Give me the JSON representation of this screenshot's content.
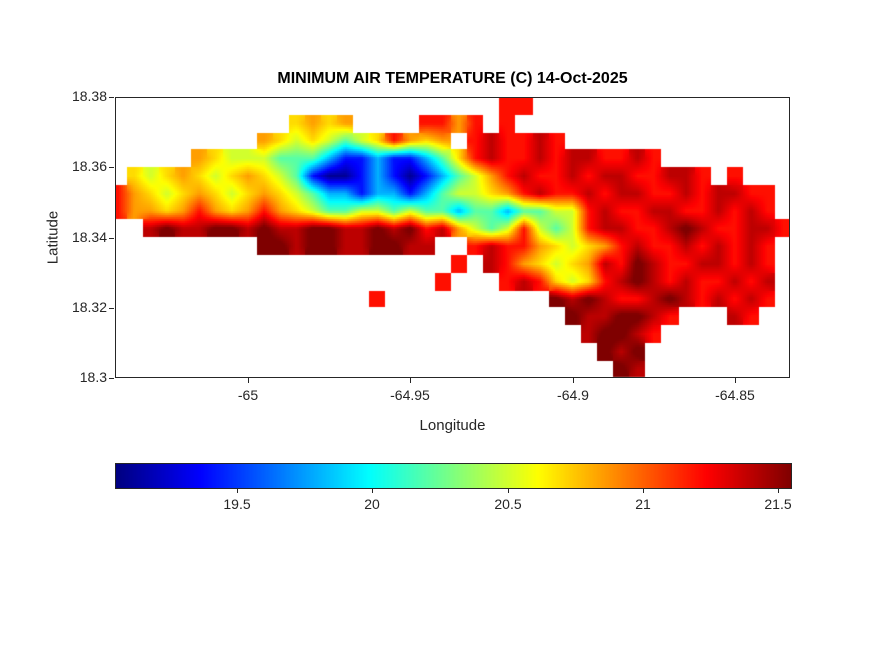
{
  "chart_data": {
    "type": "heatmap",
    "title": "MINIMUM AIR TEMPERATURE (C) 14-Oct-2025",
    "xlabel": "Longitude",
    "ylabel": "Latitude",
    "x_ticks": [
      -65,
      -64.95,
      -64.9,
      -64.85
    ],
    "x_tick_labels": [
      "-65",
      "-64.95",
      "-64.9",
      "-64.85"
    ],
    "y_ticks": [
      18.3,
      18.32,
      18.34,
      18.36,
      18.38
    ],
    "y_tick_labels": [
      "18.3",
      "18.32",
      "18.34",
      "18.36",
      "18.38"
    ],
    "xlim": [
      -65.041,
      -64.833
    ],
    "ylim": [
      18.3,
      18.38
    ],
    "grid_on": false,
    "colormap": "jet",
    "caxis": [
      19.05,
      21.55
    ],
    "background": "#ffffff",
    "nan_color": "#ffffff",
    "colorbar": {
      "orientation": "horizontal",
      "ticks": [
        19.5,
        20,
        20.5,
        21,
        21.5
      ],
      "tick_labels": [
        "19.5",
        "20",
        "20.5",
        "21",
        "21.5"
      ]
    },
    "grid": {
      "description": "Coarse reconstruction of the temperature raster over the island; '.' = sea (NaN). Letters map to deg C via value_key.",
      "lon_start": -65.04,
      "dlon": 0.005,
      "lat_start": 18.3775,
      "dlat": -0.005,
      "ncols": 42,
      "nrows": 16,
      "value_key": {
        "a": 19.1,
        "b": 19.4,
        "c": 19.8,
        "d": 20.2,
        "e": 20.5,
        "f": 20.7,
        "g": 20.85,
        "h": 21.2,
        "i": 21.4,
        "j": 21.6,
        ".": null
      },
      "rows": [
        "........................hh................",
        "...........fgfg....hhgh.h.................",
        ".........gfefedefhgfg.hihhih..............",
        ".....gfeeedddcbbcbbcdfhihhihiihhih........",
        ".fefgfefgfedbaabcbabcdeghihhihiihhiih.h...",
        "hgfefgfefgfedccbccbcdeefghihhihiihhihiihh.",
        "hggfghgfghgfeddeededdcddcddeehihhiihhihih.",
        "..ijiijjijiijjiijijhigedehedehiihhijihhiih",
        ".........jjijjiijjii..hihhgfefghihhihihih.",
        ".....................h.ihgfefgihjihhiihih.",
        "....................h...hihfefhijihihhihi.",
        "................h..........jijihhijihihih.",
        "............................jiijjih...ih..",
        ".............................ijjih........",
        "..............................jij.........",
        "...............................ji........."
      ]
    }
  }
}
